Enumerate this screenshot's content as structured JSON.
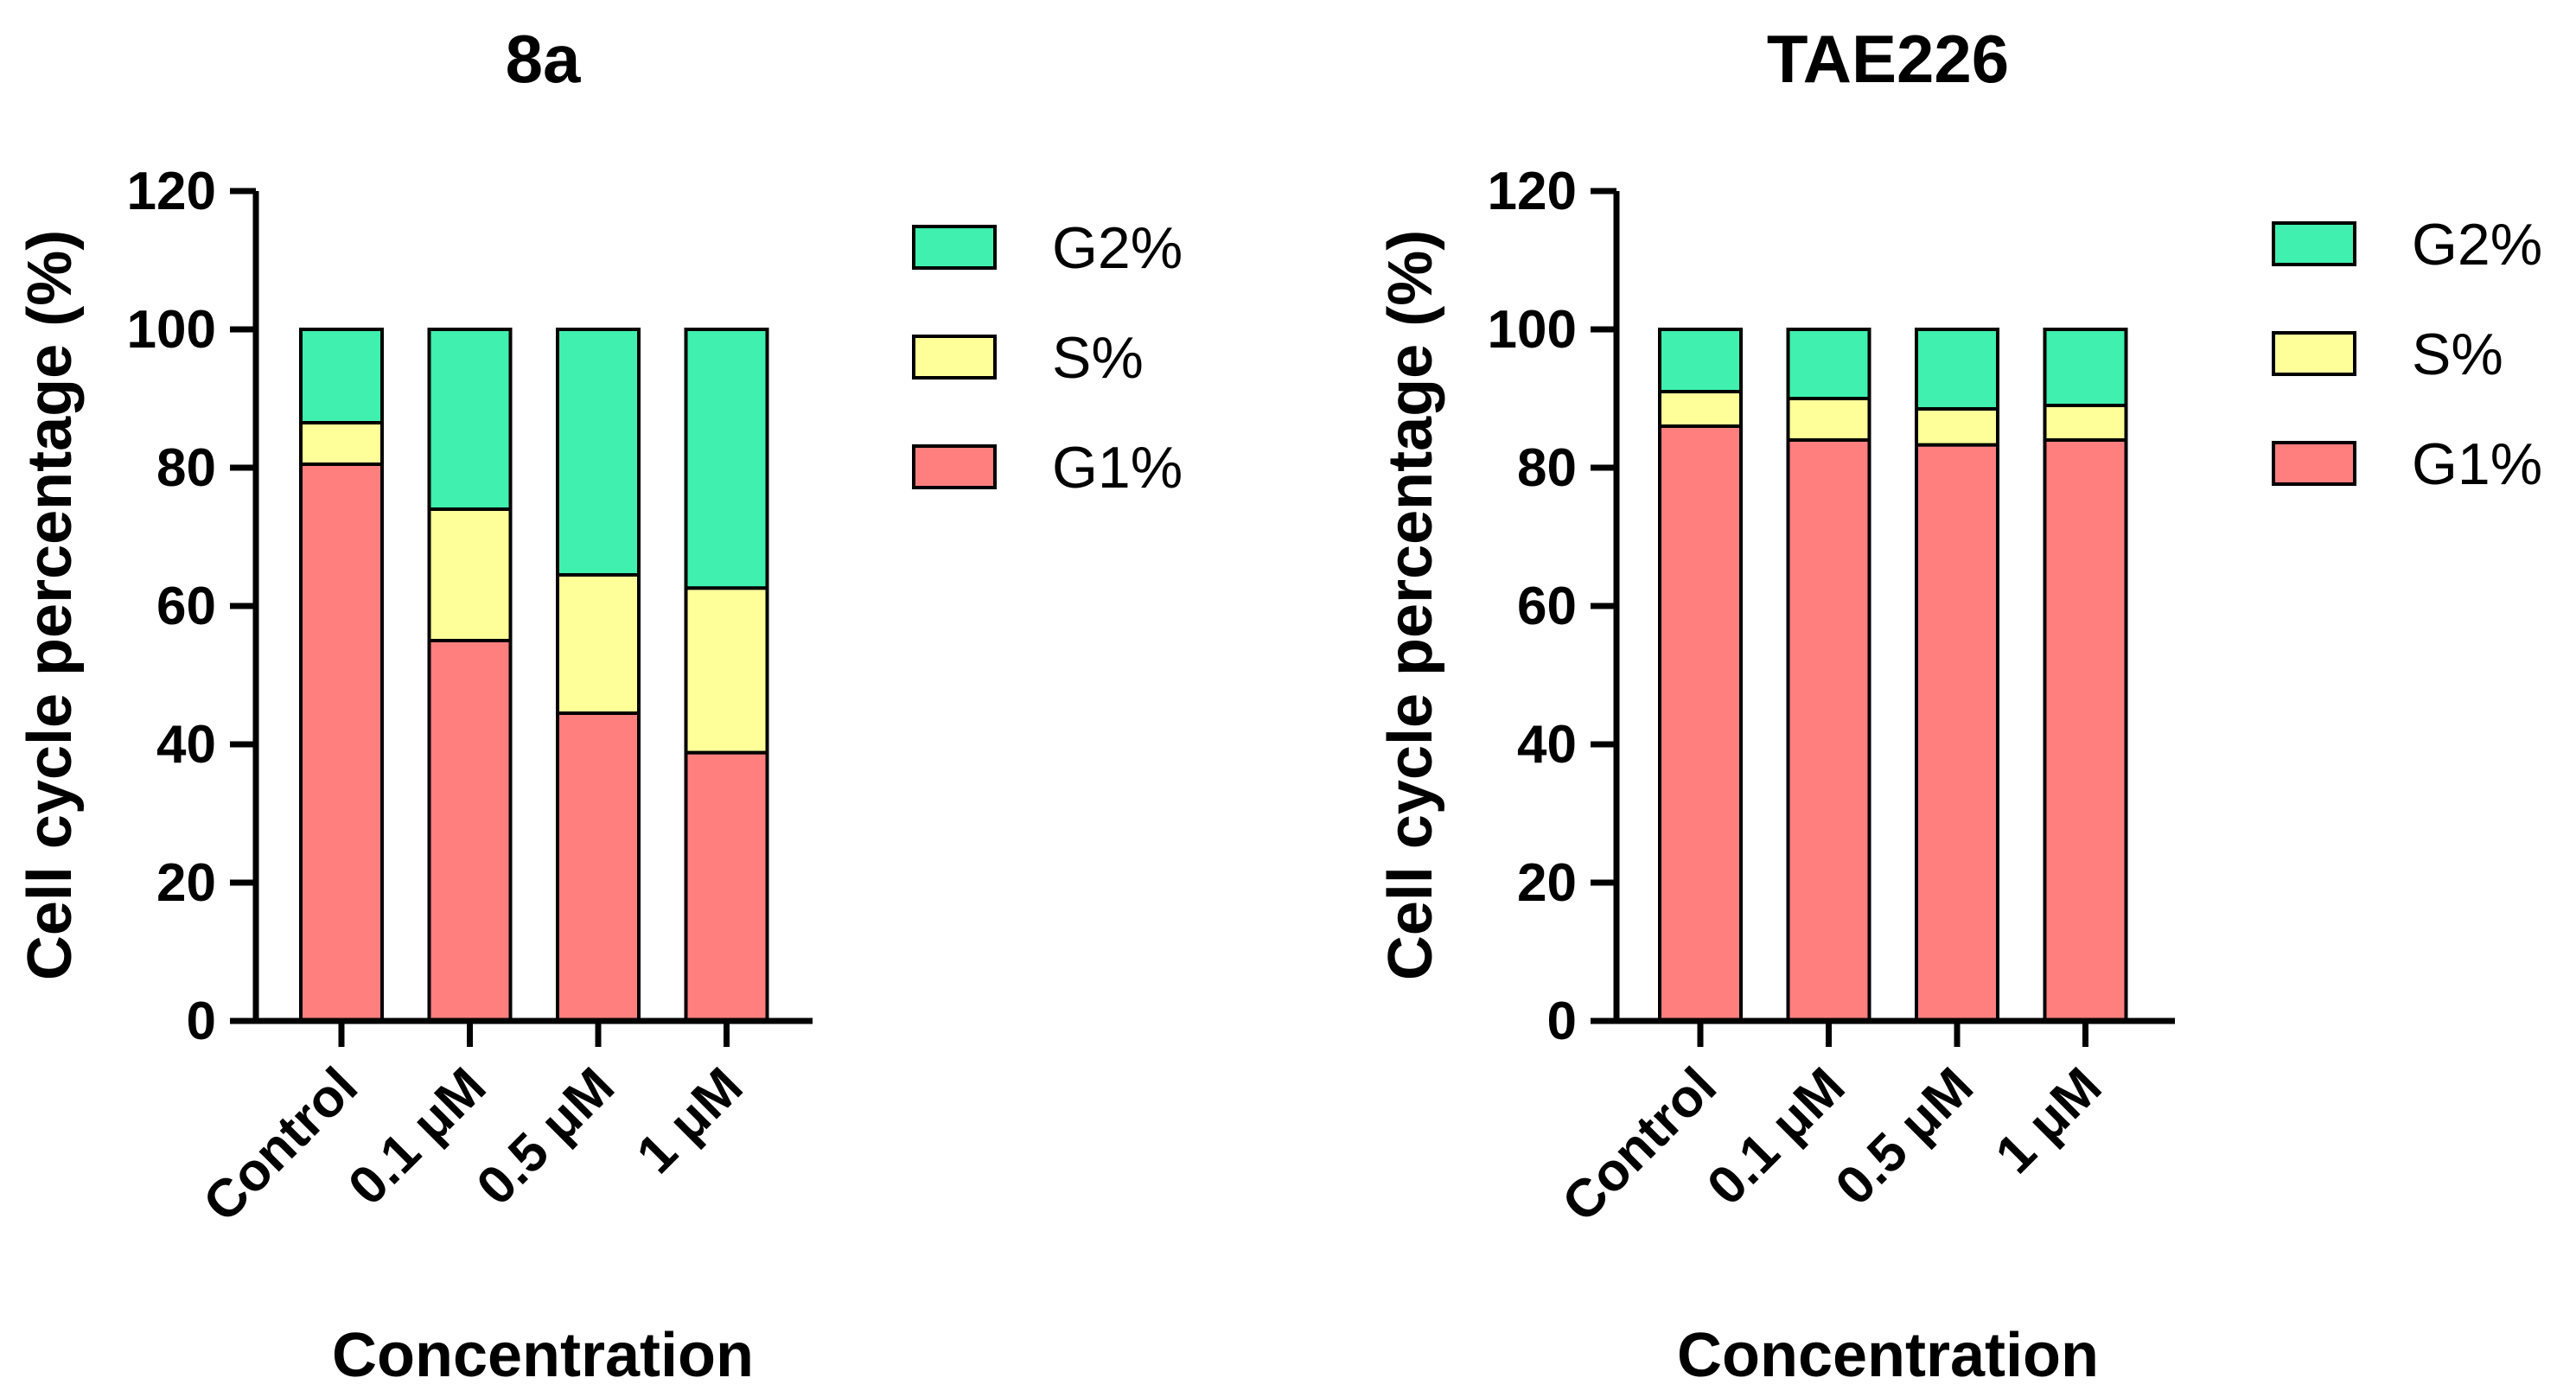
{
  "chart_data": [
    {
      "type": "bar",
      "stacked": true,
      "title": "8a",
      "xlabel": "Concentration",
      "ylabel": "Cell cycle percentage (%)",
      "ylim": [
        0,
        120
      ],
      "yticks": [
        0,
        20,
        40,
        60,
        80,
        100,
        120
      ],
      "categories": [
        "Control",
        "0.1 μM",
        "0.5 μM",
        "1 μM"
      ],
      "series": [
        {
          "name": "G1%",
          "color": "#ff7f7f",
          "values": [
            80.5,
            55,
            44.5,
            38.8
          ]
        },
        {
          "name": "S%",
          "color": "#ffff99",
          "values": [
            6.0,
            19,
            20,
            23.8
          ]
        },
        {
          "name": "G2%",
          "color": "#3ff0ae",
          "values": [
            13.5,
            26,
            35.5,
            37.4
          ]
        }
      ],
      "legend": [
        "G2%",
        "S%",
        "G1%"
      ]
    },
    {
      "type": "bar",
      "stacked": true,
      "title": "TAE226",
      "xlabel": "Concentration",
      "ylabel": "Cell cycle percentage (%)",
      "ylim": [
        0,
        120
      ],
      "yticks": [
        0,
        20,
        40,
        60,
        80,
        100,
        120
      ],
      "categories": [
        "Control",
        "0.1 μM",
        "0.5 μM",
        "1 μM"
      ],
      "series": [
        {
          "name": "G1%",
          "color": "#ff7f7f",
          "values": [
            86,
            84,
            83.3,
            84
          ]
        },
        {
          "name": "S%",
          "color": "#ffff99",
          "values": [
            5,
            6,
            5.2,
            5
          ]
        },
        {
          "name": "G2%",
          "color": "#3ff0ae",
          "values": [
            9,
            10,
            11.5,
            11
          ]
        }
      ],
      "legend": [
        "G2%",
        "S%",
        "G1%"
      ]
    }
  ]
}
